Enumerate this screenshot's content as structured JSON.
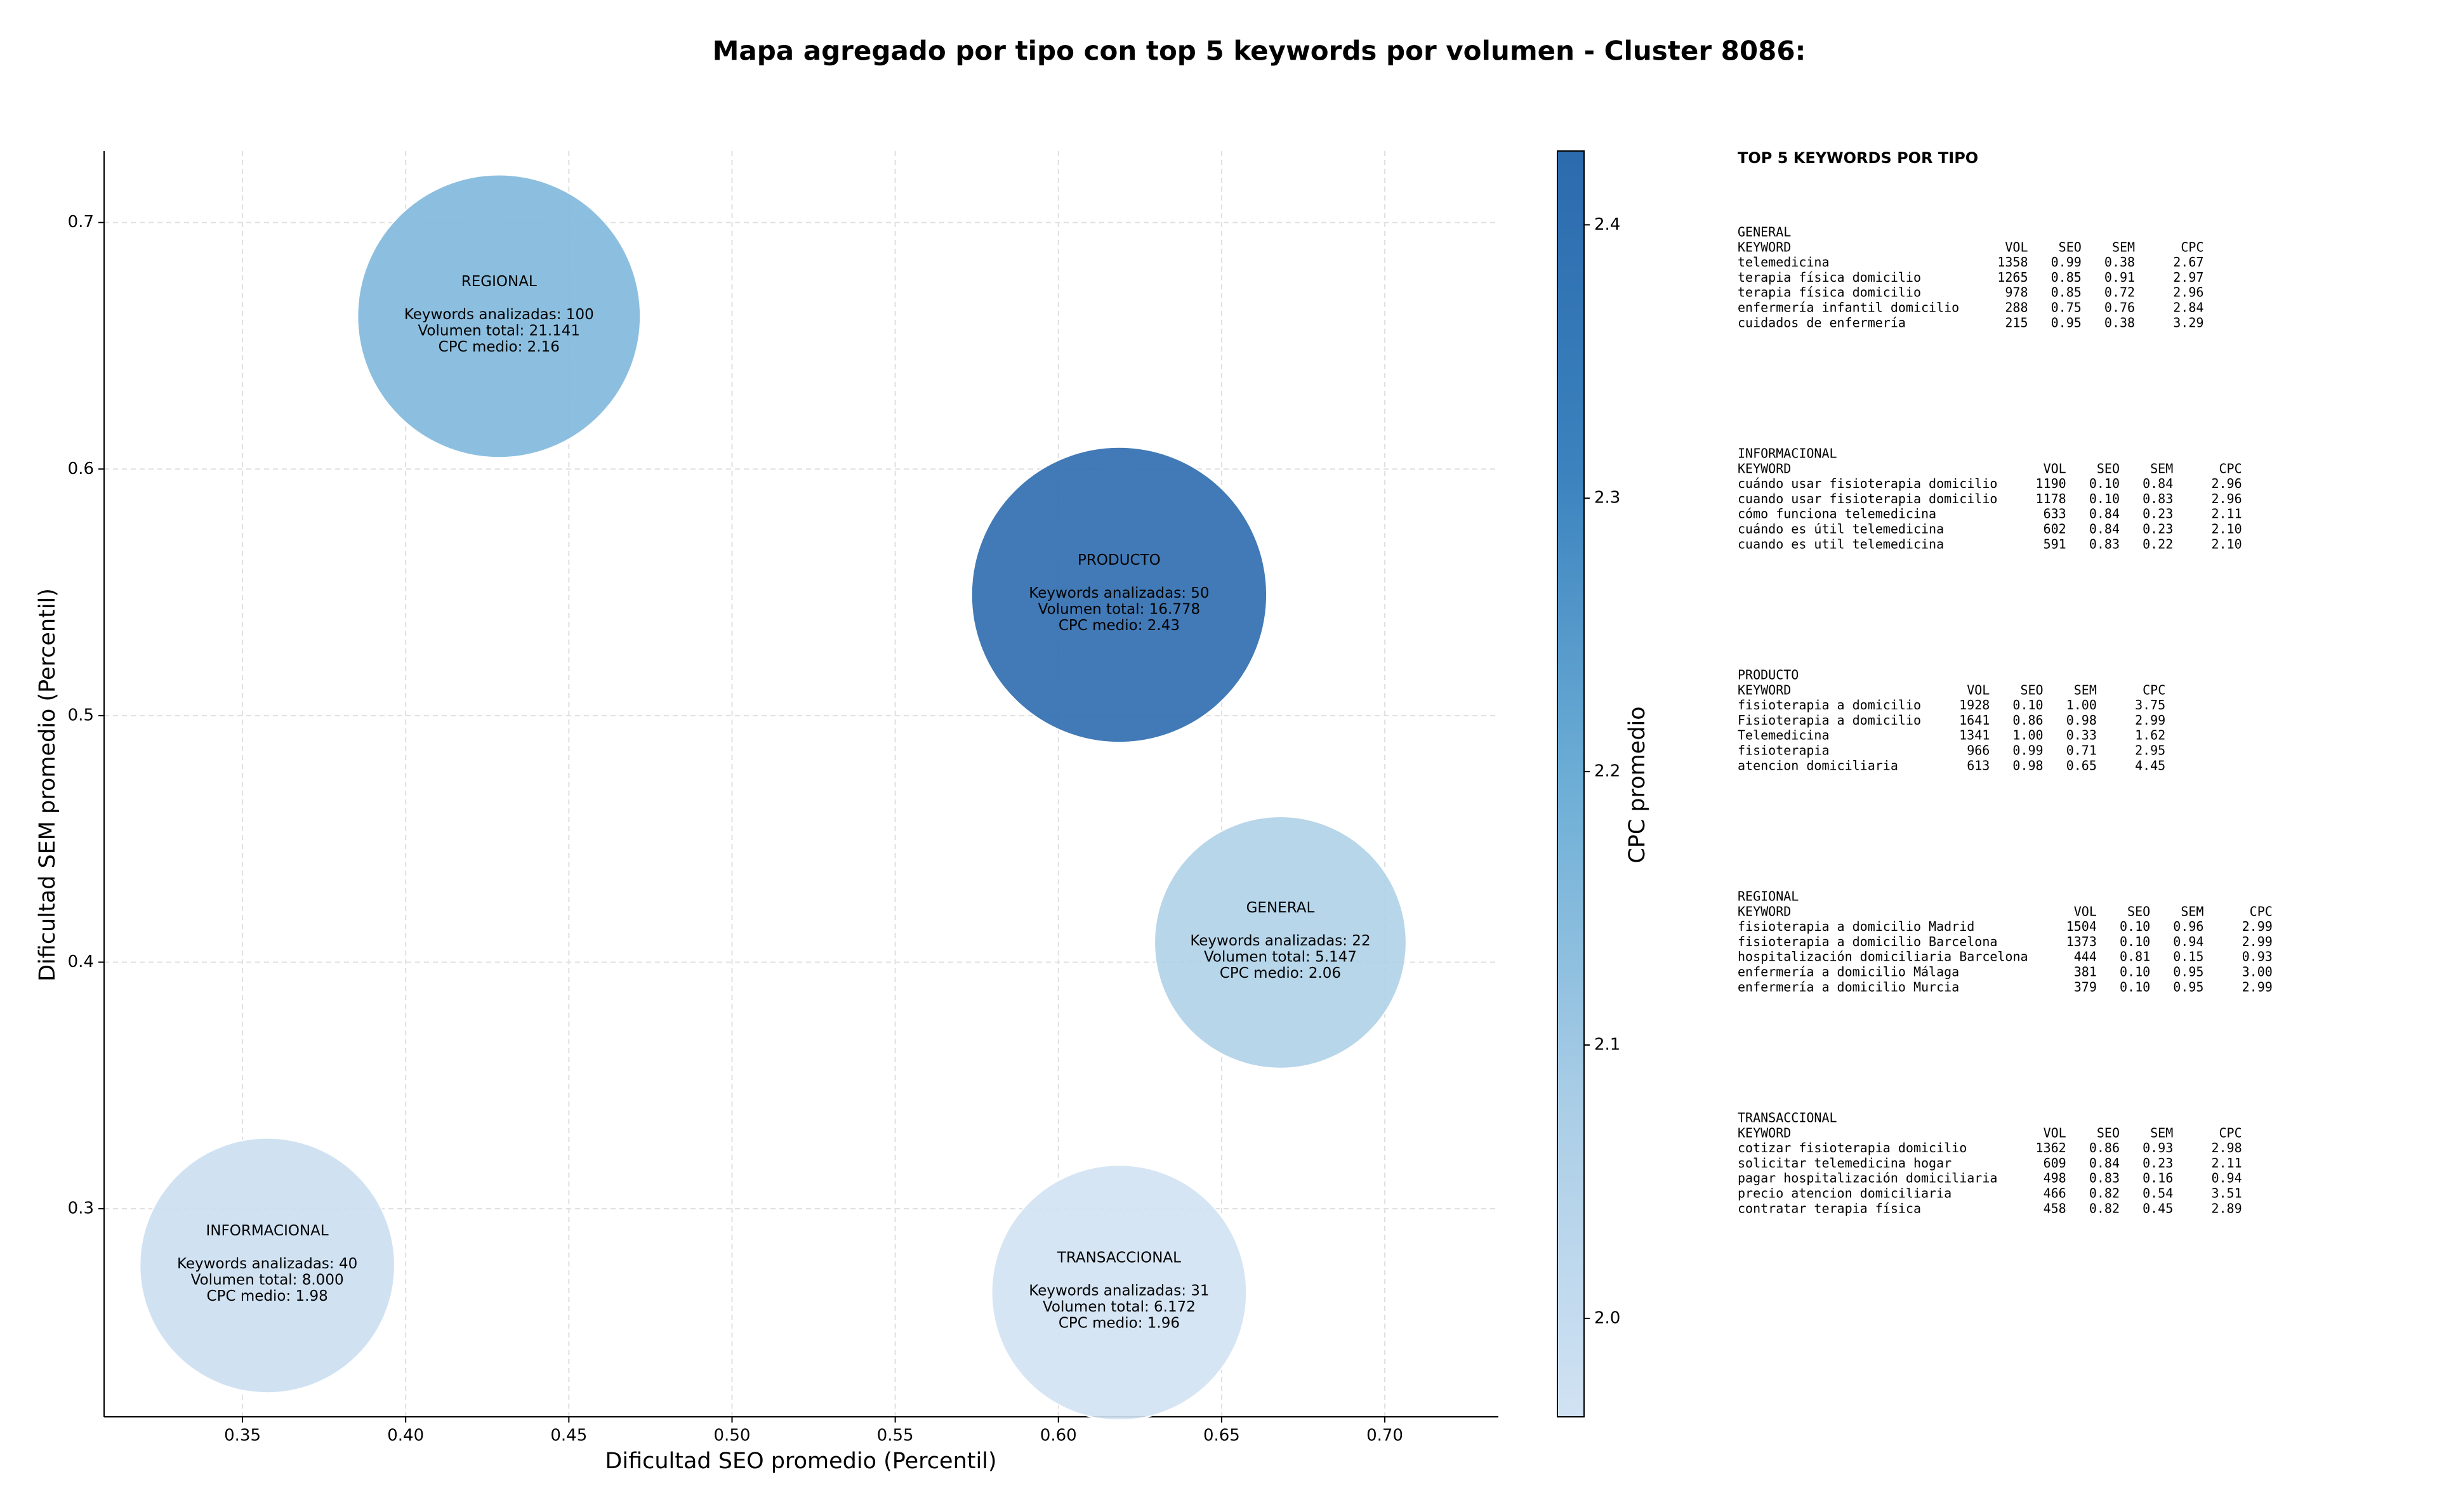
{
  "chart_data": {
    "type": "bubble",
    "title": "Mapa agregado por tipo con top 5 keywords por volumen - Cluster 8086:",
    "xlabel": "Dificultad SEO promedio (Percentil)",
    "ylabel": "Dificultad SEM promedio (Percentil)",
    "colorbar_label": "CPC promedio",
    "xlim": [
      0.3076,
      0.7348
    ],
    "xticks": [
      {
        "value": 0.35,
        "label": "0.35"
      },
      {
        "value": 0.4,
        "label": "0.40"
      },
      {
        "value": 0.45,
        "label": "0.45"
      },
      {
        "value": 0.5,
        "label": "0.50"
      },
      {
        "value": 0.55,
        "label": "0.55"
      },
      {
        "value": 0.6,
        "label": "0.60"
      },
      {
        "value": 0.65,
        "label": "0.65"
      },
      {
        "value": 0.7,
        "label": "0.70"
      }
    ],
    "ylim": [
      0.2156,
      0.729
    ],
    "yticks": [
      0.3,
      0.4,
      0.5,
      0.6,
      0.7
    ],
    "clim": [
      1.964,
      2.427
    ],
    "cticks": [
      {
        "value": 2.0,
        "label": "2.0"
      },
      2.1,
      2.2,
      2.3,
      2.4
    ],
    "colormap": [
      "#d1e2f3",
      "#a9cde6",
      "#6daed6",
      "#3b82be",
      "#2c6bae"
    ],
    "grid": true,
    "points": [
      {
        "name": "GENERAL",
        "x": 0.668,
        "y": 0.408,
        "size": 81,
        "cpc": 2.06,
        "details": [
          "Keywords analizadas: 22",
          "Volumen total: 5.147",
          "CPC medio: 2.06"
        ]
      },
      {
        "name": "INFORMACIONAL",
        "x": 0.3576,
        "y": 0.277,
        "size": 82,
        "cpc": 1.98,
        "details": [
          "Keywords analizadas: 40",
          "Volumen total: 8.000",
          "CPC medio: 1.98"
        ]
      },
      {
        "name": "PRODUCTO",
        "x": 0.6186,
        "y": 0.549,
        "size": 95,
        "cpc": 2.43,
        "details": [
          "Keywords analizadas: 50",
          "Volumen total: 16.778",
          "CPC medio: 2.43"
        ]
      },
      {
        "name": "REGIONAL",
        "x": 0.4286,
        "y": 0.662,
        "size": 91,
        "cpc": 2.16,
        "details": [
          "Keywords analizadas: 100",
          "Volumen total: 21.141",
          "CPC medio: 2.16"
        ]
      },
      {
        "name": "TRANSACCIONAL",
        "x": 0.6186,
        "y": 0.266,
        "size": 82,
        "cpc": 1.96,
        "details": [
          "Keywords analizadas: 31",
          "Volumen total: 6.172",
          "CPC medio: 1.96"
        ]
      }
    ],
    "panel": {
      "title": "TOP 5 KEYWORDS POR TIPO",
      "columns": [
        "KEYWORD",
        "VOL",
        "SEO",
        "SEM",
        "CPC"
      ],
      "tables": [
        {
          "name": "GENERAL",
          "rows": [
            [
              "telemedicina",
              "1358",
              "0.99",
              "0.38",
              "2.67"
            ],
            [
              "terapia física domicilio",
              "1265",
              "0.85",
              "0.91",
              "2.97"
            ],
            [
              "terapia física domicilio",
              "978",
              "0.85",
              "0.72",
              "2.96"
            ],
            [
              "enfermería infantil domicilio",
              "288",
              "0.75",
              "0.76",
              "2.84"
            ],
            [
              "cuidados de enfermería",
              "215",
              "0.95",
              "0.38",
              "3.29"
            ]
          ]
        },
        {
          "name": "INFORMACIONAL",
          "rows": [
            [
              "cuándo usar fisioterapia domicilio",
              "1190",
              "0.10",
              "0.84",
              "2.96"
            ],
            [
              "cuando usar fisioterapia domicilio",
              "1178",
              "0.10",
              "0.83",
              "2.96"
            ],
            [
              "cómo funciona telemedicina",
              "633",
              "0.84",
              "0.23",
              "2.11"
            ],
            [
              "cuándo es útil telemedicina",
              "602",
              "0.84",
              "0.23",
              "2.10"
            ],
            [
              "cuando es util telemedicina",
              "591",
              "0.83",
              "0.22",
              "2.10"
            ]
          ]
        },
        {
          "name": "PRODUCTO",
          "rows": [
            [
              "fisioterapia a domicilio",
              "1928",
              "0.10",
              "1.00",
              "3.75"
            ],
            [
              "Fisioterapia a domicilio",
              "1641",
              "0.86",
              "0.98",
              "2.99"
            ],
            [
              "Telemedicina",
              "1341",
              "1.00",
              "0.33",
              "1.62"
            ],
            [
              "fisioterapia",
              "966",
              "0.99",
              "0.71",
              "2.95"
            ],
            [
              "atencion domiciliaria",
              "613",
              "0.98",
              "0.65",
              "4.45"
            ]
          ]
        },
        {
          "name": "REGIONAL",
          "rows": [
            [
              "fisioterapia a domicilio Madrid",
              "1504",
              "0.10",
              "0.96",
              "2.99"
            ],
            [
              "fisioterapia a domicilio Barcelona",
              "1373",
              "0.10",
              "0.94",
              "2.99"
            ],
            [
              "hospitalización domiciliaria Barcelona",
              "444",
              "0.81",
              "0.15",
              "0.93"
            ],
            [
              "enfermería a domicilio Málaga",
              "381",
              "0.10",
              "0.95",
              "3.00"
            ],
            [
              "enfermería a domicilio Murcia",
              "379",
              "0.10",
              "0.95",
              "2.99"
            ]
          ]
        },
        {
          "name": "TRANSACCIONAL",
          "rows": [
            [
              "cotizar fisioterapia domicilio",
              "1362",
              "0.86",
              "0.93",
              "2.98"
            ],
            [
              "solicitar telemedicina hogar",
              "609",
              "0.84",
              "0.23",
              "2.11"
            ],
            [
              "pagar hospitalización domiciliaria",
              "498",
              "0.83",
              "0.16",
              "0.94"
            ],
            [
              "precio atencion domiciliaria",
              "466",
              "0.82",
              "0.54",
              "3.51"
            ],
            [
              "contratar terapia física",
              "458",
              "0.82",
              "0.45",
              "2.89"
            ]
          ]
        }
      ]
    }
  }
}
